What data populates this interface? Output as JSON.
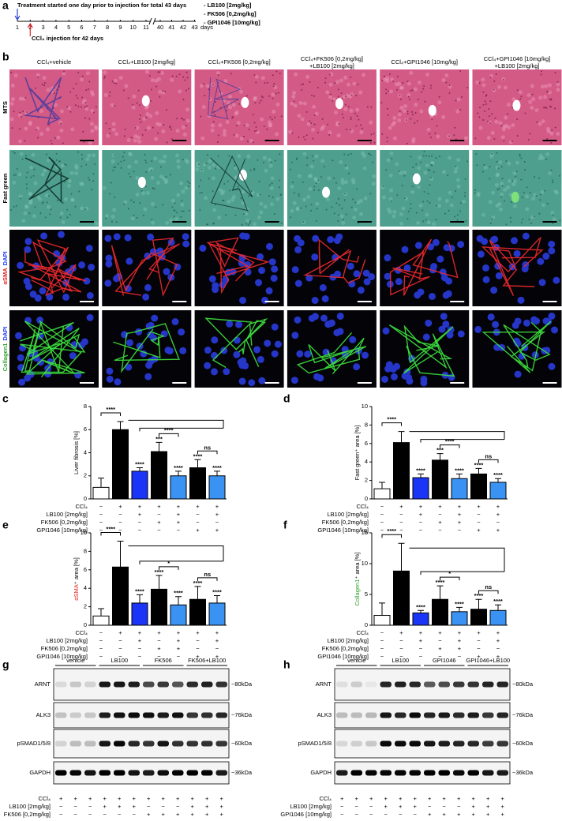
{
  "panel_a": {
    "label": "a",
    "title": "Treatment started one day prior to injection for total 43 days",
    "drugs": [
      "- LB100 [2mg/kg]",
      "- FK506 [0,2mg/kg]",
      "- GPI1046 [10mg/kg]"
    ],
    "days": [
      "1",
      "2",
      "3",
      "4",
      "5",
      "6",
      "7",
      "8",
      "9",
      "10",
      "11",
      "40",
      "41",
      "42",
      "43"
    ],
    "unit": "days",
    "injection": "CCl₄ injection for 42 days"
  },
  "panel_b": {
    "label": "b",
    "columns": [
      [
        "CCl₄+vehicle"
      ],
      [
        "CCl₄+LB100 [2mg/kg]"
      ],
      [
        "CCl₄+FK506 [0,2mg/kg]"
      ],
      [
        "CCl₄+FK506 [0,2mg/kg]",
        "+LB100 [2mg/kg]"
      ],
      [
        "CCl₄+GPI1046 [10mg/kg]"
      ],
      [
        "CCl₄+GPI1046 [10mg/kg]",
        "+LB100 [2mg/kg]"
      ]
    ],
    "rows": [
      [
        {
          "text": "MTS"
        }
      ],
      [
        {
          "text": "Fast green"
        }
      ],
      [
        {
          "text": "αSMA",
          "color": "#e8201a"
        },
        {
          "text": "DAPI",
          "color": "#1a3cff"
        }
      ],
      [
        {
          "text": "Collagen1",
          "color": "#2ea32e"
        },
        {
          "text": "DAPI",
          "color": "#1a3cff"
        }
      ]
    ]
  },
  "chart_data": [
    {
      "type": "bar",
      "panel": "c",
      "y_label": [
        {
          "text": "Liver fibrosis [%]"
        }
      ],
      "ylim": [
        0,
        8
      ],
      "yticks": [
        0,
        2,
        4,
        6,
        8
      ],
      "values": [
        1.0,
        6.0,
        2.4,
        4.1,
        2.0,
        2.7,
        2.0
      ],
      "errors": [
        0.8,
        0.7,
        0.3,
        0.8,
        0.4,
        0.7,
        0.4
      ],
      "colors": [
        "#ffffff",
        "#000000",
        "#1a35f5",
        "#000000",
        "#3a92f2",
        "#000000",
        "#3a92f2"
      ],
      "bar_labels": [
        null,
        null,
        "****",
        "***",
        "****",
        "****",
        "****"
      ],
      "brackets": [
        {
          "from": 0,
          "to": 1,
          "label": "****"
        },
        {
          "from": 3,
          "to": 4,
          "label": "****"
        },
        {
          "from": 5,
          "to": 6,
          "label": "ns"
        }
      ],
      "treatments": [
        {
          "name": "CCl₄",
          "signs": [
            "−",
            "+",
            "+",
            "+",
            "+",
            "+",
            "+"
          ]
        },
        {
          "name": "LB100 [2mg/kg]",
          "signs": [
            "−",
            "−",
            "+",
            "−",
            "+",
            "−",
            "+"
          ]
        },
        {
          "name": "FK506 [0,2mg/kg]",
          "signs": [
            "−",
            "−",
            "−",
            "+",
            "+",
            "−",
            "−"
          ]
        },
        {
          "name": "GPI1046 [10mg/kg]",
          "signs": [
            "−",
            "−",
            "−",
            "−",
            "−",
            "+",
            "+"
          ]
        }
      ]
    },
    {
      "type": "bar",
      "panel": "d",
      "y_label": [
        {
          "text": "Fast green⁺ area [%]"
        }
      ],
      "ylim": [
        0,
        10
      ],
      "yticks": [
        0,
        2,
        4,
        6,
        8,
        10
      ],
      "values": [
        1.1,
        6.1,
        2.3,
        4.2,
        2.2,
        2.7,
        1.8
      ],
      "errors": [
        0.7,
        1.2,
        0.4,
        0.7,
        0.5,
        0.6,
        0.4
      ],
      "colors": [
        "#ffffff",
        "#000000",
        "#1a35f5",
        "#000000",
        "#3a92f2",
        "#000000",
        "#3a92f2"
      ],
      "bar_labels": [
        null,
        null,
        "****",
        "***",
        "****",
        "****",
        "****"
      ],
      "brackets": [
        {
          "from": 0,
          "to": 1,
          "label": "****"
        },
        {
          "from": 3,
          "to": 4,
          "label": "****"
        },
        {
          "from": 5,
          "to": 6,
          "label": "ns"
        }
      ],
      "treatments": [
        {
          "name": "CCl₄",
          "signs": [
            "−",
            "+",
            "+",
            "+",
            "+",
            "+",
            "+"
          ]
        },
        {
          "name": "LB100 [2mg/kg]",
          "signs": [
            "−",
            "−",
            "+",
            "−",
            "+",
            "−",
            "+"
          ]
        },
        {
          "name": "FK506 [0,2mg/kg]",
          "signs": [
            "−",
            "−",
            "−",
            "+",
            "+",
            "−",
            "−"
          ]
        },
        {
          "name": "GPI1046 [10mg/kg]",
          "signs": [
            "−",
            "−",
            "−",
            "−",
            "−",
            "+",
            "+"
          ]
        }
      ]
    },
    {
      "type": "bar",
      "panel": "e",
      "y_label": [
        {
          "text": "αSMA",
          "color": "#e8201a"
        },
        {
          "text": "⁺ area [%]"
        }
      ],
      "ylim": [
        0,
        10
      ],
      "yticks": [
        0,
        2,
        4,
        6,
        8,
        10
      ],
      "values": [
        1.0,
        6.3,
        2.4,
        3.9,
        2.2,
        2.8,
        2.4
      ],
      "errors": [
        0.8,
        2.8,
        0.9,
        1.5,
        0.9,
        1.4,
        0.8
      ],
      "colors": [
        "#ffffff",
        "#000000",
        "#1a35f5",
        "#000000",
        "#3a92f2",
        "#000000",
        "#3a92f2"
      ],
      "bar_labels": [
        null,
        null,
        "****",
        "****",
        "****",
        "****",
        "****"
      ],
      "brackets": [
        {
          "from": 0,
          "to": 1,
          "label": "****"
        },
        {
          "from": 3,
          "to": 4,
          "label": "*"
        },
        {
          "from": 5,
          "to": 6,
          "label": "ns"
        }
      ],
      "treatments": [
        {
          "name": "CCl₄",
          "signs": [
            "−",
            "+",
            "+",
            "+",
            "+",
            "+",
            "+"
          ]
        },
        {
          "name": "LB100 [2mg/kg]",
          "signs": [
            "−",
            "−",
            "+",
            "−",
            "+",
            "−",
            "+"
          ]
        },
        {
          "name": "FK506 [0,2mg/kg]",
          "signs": [
            "−",
            "−",
            "−",
            "+",
            "+",
            "−",
            "−"
          ]
        },
        {
          "name": "GPI1046 [10mg/kg]",
          "signs": [
            "−",
            "−",
            "−",
            "−",
            "−",
            "+",
            "+"
          ]
        }
      ]
    },
    {
      "type": "bar",
      "panel": "f",
      "y_label": [
        {
          "text": "Collagen1",
          "color": "#2ea32e"
        },
        {
          "text": "⁺ area [%]"
        }
      ],
      "ylim": [
        0,
        15
      ],
      "yticks": [
        0,
        5,
        10,
        15
      ],
      "values": [
        1.6,
        8.8,
        2.0,
        4.2,
        2.2,
        2.6,
        2.4
      ],
      "errors": [
        2.0,
        4.5,
        0.4,
        2.2,
        0.7,
        1.6,
        0.9
      ],
      "colors": [
        "#ffffff",
        "#000000",
        "#1a35f5",
        "#000000",
        "#3a92f2",
        "#000000",
        "#3a92f2"
      ],
      "bar_labels": [
        null,
        null,
        "****",
        "****",
        "****",
        "****",
        "****"
      ],
      "brackets": [
        {
          "from": 0,
          "to": 1,
          "label": "****"
        },
        {
          "from": 3,
          "to": 4,
          "label": "*"
        },
        {
          "from": 5,
          "to": 6,
          "label": "ns"
        }
      ],
      "treatments": [
        {
          "name": "CCl₄",
          "signs": [
            "−",
            "+",
            "+",
            "+",
            "+",
            "+",
            "+"
          ]
        },
        {
          "name": "LB100 [2mg/kg]",
          "signs": [
            "−",
            "−",
            "+",
            "−",
            "+",
            "−",
            "+"
          ]
        },
        {
          "name": "FK506 [0,2mg/kg]",
          "signs": [
            "−",
            "−",
            "−",
            "+",
            "+",
            "−",
            "−"
          ]
        },
        {
          "name": "GPI1046 [10mg/kg]",
          "signs": [
            "−",
            "−",
            "−",
            "−",
            "−",
            "+",
            "+"
          ]
        }
      ]
    }
  ],
  "panel_g": {
    "label": "g",
    "groups": [
      "vehicle",
      "LB100",
      "FK506",
      "FK506+LB100"
    ],
    "proteins": [
      "ARNT",
      "ALK3",
      "pSMAD1/5/8",
      "GAPDH"
    ],
    "sizes": [
      "~80kDa",
      "~76kDa",
      "~60kDa",
      "~36kDa"
    ],
    "treatments": [
      {
        "name": "CCl₄",
        "signs": [
          "+",
          "+",
          "+",
          "+",
          "+",
          "+",
          "+",
          "+",
          "+",
          "+",
          "+",
          "+"
        ]
      },
      {
        "name": "LB100 [2mg/kg]",
        "signs": [
          "−",
          "−",
          "−",
          "+",
          "+",
          "+",
          "−",
          "−",
          "−",
          "+",
          "+",
          "+"
        ]
      },
      {
        "name": "FK506 [0,2mg/kg]",
        "signs": [
          "−",
          "−",
          "−",
          "−",
          "−",
          "−",
          "+",
          "+",
          "+",
          "+",
          "+",
          "+"
        ]
      }
    ]
  },
  "panel_h": {
    "label": "h",
    "groups": [
      "vehicle",
      "LB100",
      "GPI1046",
      "GPI1046+LB100"
    ],
    "proteins": [
      "ARNT",
      "ALK3",
      "pSMAD1/5/8",
      "GAPDH"
    ],
    "sizes": [
      "~80kDa",
      "~76kDa",
      "~60kDa",
      "~36kDa"
    ],
    "treatments": [
      {
        "name": "CCl₄",
        "signs": [
          "+",
          "+",
          "+",
          "+",
          "+",
          "+",
          "+",
          "+",
          "+",
          "+",
          "+",
          "+"
        ]
      },
      {
        "name": "LB100 [2mg/kg]",
        "signs": [
          "−",
          "−",
          "−",
          "+",
          "+",
          "+",
          "−",
          "−",
          "−",
          "+",
          "+",
          "+"
        ]
      },
      {
        "name": "GPI1046 [10mg/kg]",
        "signs": [
          "−",
          "−",
          "−",
          "−",
          "−",
          "−",
          "+",
          "+",
          "+",
          "+",
          "+",
          "+"
        ]
      }
    ]
  }
}
